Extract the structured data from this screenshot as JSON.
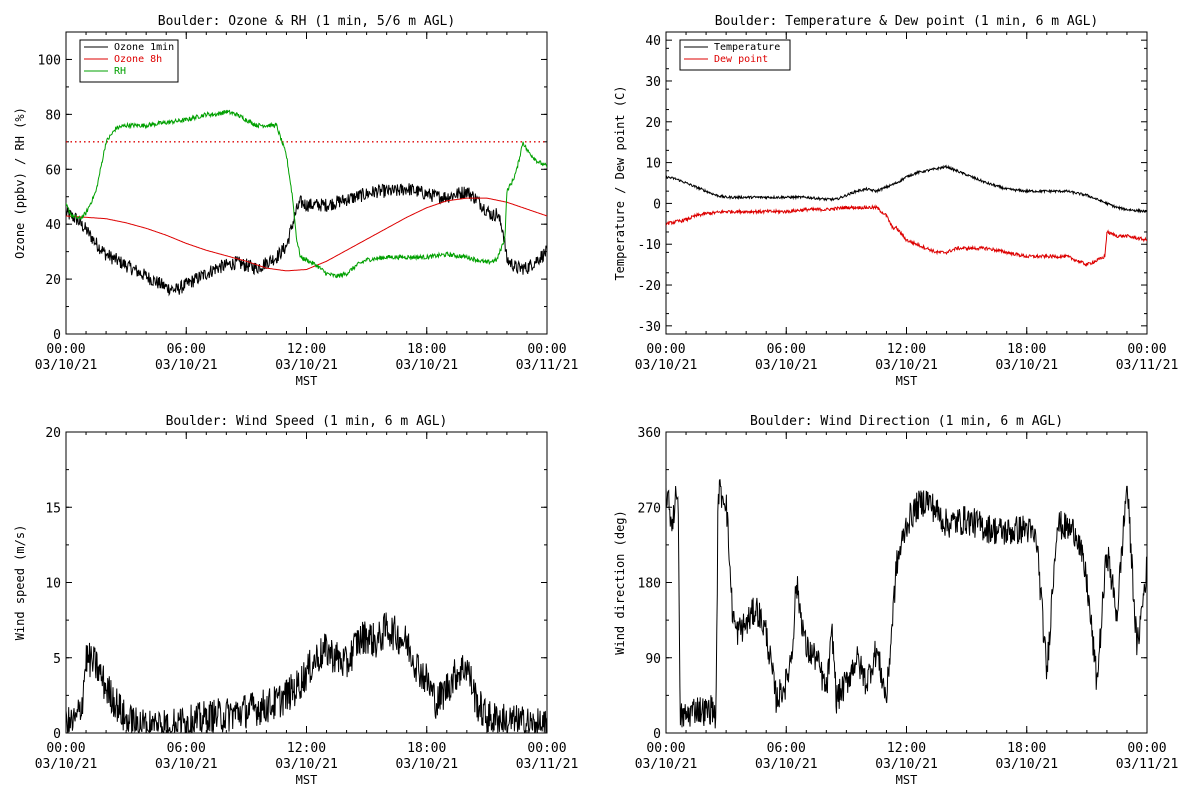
{
  "chart_data": [
    {
      "type": "line",
      "title": "Boulder: Ozone & RH (1 min, 5/6 m AGL)",
      "xlabel": "MST",
      "ylabel": "Ozone (ppbv) / RH (%)",
      "xlim": [
        0,
        24
      ],
      "ylim": [
        0,
        110
      ],
      "yticks": [
        0,
        20,
        40,
        60,
        80,
        100
      ],
      "xticks": [
        {
          "x": 0,
          "time": "00:00",
          "date": "03/10/21"
        },
        {
          "x": 6,
          "time": "06:00",
          "date": "03/10/21"
        },
        {
          "x": 12,
          "time": "12:00",
          "date": "03/10/21"
        },
        {
          "x": 18,
          "time": "18:00",
          "date": "03/10/21"
        },
        {
          "x": 24,
          "time": "00:00",
          "date": "03/11/21"
        }
      ],
      "legend": "top-left",
      "reference_line": {
        "y": 70,
        "color": "#dd0000",
        "style": "dotted"
      },
      "series": [
        {
          "name": "Ozone 1min",
          "color": "#000000",
          "noise": 2.5,
          "x": [
            0,
            0.5,
            1,
            1.5,
            2,
            2.5,
            3,
            3.5,
            4,
            4.5,
            5,
            5.5,
            6,
            6.5,
            7,
            7.5,
            8,
            8.5,
            9,
            9.5,
            10,
            10.5,
            11,
            11.3,
            11.5,
            11.7,
            12,
            12.5,
            13,
            13.5,
            14,
            14.5,
            15,
            15.5,
            16,
            16.5,
            17,
            17.5,
            18,
            18.5,
            19,
            19.5,
            20,
            20.5,
            21,
            21.3,
            21.5,
            21.8,
            22,
            22.5,
            23,
            23.5,
            24
          ],
          "y": [
            44,
            42,
            38,
            33,
            29,
            27,
            25,
            23,
            21,
            19,
            17,
            16,
            18,
            20,
            22,
            24,
            25,
            26,
            25,
            24,
            26,
            28,
            32,
            40,
            45,
            48,
            47,
            47,
            47,
            48,
            49,
            50,
            51,
            52,
            52,
            52,
            53,
            52,
            51,
            50,
            50,
            51,
            52,
            49,
            45,
            43,
            44,
            38,
            27,
            24,
            24,
            27,
            30
          ]
        },
        {
          "name": "Ozone 8h",
          "color": "#dd0000",
          "noise": 0,
          "x": [
            0,
            1,
            2,
            3,
            4,
            5,
            6,
            7,
            8,
            9,
            10,
            11,
            12,
            13,
            14,
            15,
            16,
            17,
            18,
            19,
            20,
            21,
            22,
            23,
            24
          ],
          "y": [
            43,
            42.5,
            42,
            40.5,
            38.5,
            36,
            33,
            30.5,
            28.5,
            26.5,
            24,
            23,
            23.5,
            26.5,
            30.5,
            34.5,
            38.5,
            42.5,
            46,
            48.5,
            49.5,
            49.5,
            48,
            45.5,
            43
          ]
        },
        {
          "name": "RH",
          "color": "#00a000",
          "noise": 0.8,
          "x": [
            0,
            0.3,
            0.7,
            1,
            1.5,
            2,
            2.5,
            3,
            4,
            5,
            6,
            6.5,
            7,
            7.5,
            8,
            8.5,
            9,
            9.5,
            10,
            10.5,
            11,
            11.3,
            11.5,
            11.7,
            12,
            12.5,
            13,
            13.5,
            14,
            14.5,
            15,
            16,
            17,
            18,
            19,
            20,
            21,
            21.5,
            21.9,
            22,
            22.3,
            22.5,
            22.8,
            23,
            23.5,
            24
          ],
          "y": [
            47,
            43,
            42,
            44,
            52,
            70,
            75,
            76,
            76,
            77,
            78,
            79,
            80,
            80,
            81,
            80,
            78,
            76,
            76,
            76,
            65,
            50,
            35,
            28,
            27,
            25,
            22,
            21,
            22,
            25,
            27,
            28,
            28,
            28,
            29,
            28,
            26,
            27,
            35,
            52,
            56,
            60,
            70,
            67,
            63,
            61
          ]
        }
      ]
    },
    {
      "type": "line",
      "title": "Boulder: Temperature & Dew point (1 min, 6 m AGL)",
      "xlabel": "MST",
      "ylabel": "Temperature / Dew point (C)",
      "xlim": [
        0,
        24
      ],
      "ylim": [
        -32,
        42
      ],
      "yticks": [
        -30,
        -20,
        -10,
        0,
        10,
        20,
        30,
        40
      ],
      "xticks": [
        {
          "x": 0,
          "time": "00:00",
          "date": "03/10/21"
        },
        {
          "x": 6,
          "time": "06:00",
          "date": "03/10/21"
        },
        {
          "x": 12,
          "time": "12:00",
          "date": "03/10/21"
        },
        {
          "x": 18,
          "time": "18:00",
          "date": "03/10/21"
        },
        {
          "x": 24,
          "time": "00:00",
          "date": "03/11/21"
        }
      ],
      "legend": "top-left",
      "series": [
        {
          "name": "Temperature",
          "color": "#000000",
          "noise": 0.3,
          "x": [
            0,
            0.5,
            1,
            1.5,
            2,
            2.5,
            3,
            4,
            5,
            6,
            7,
            8,
            8.5,
            9,
            9.5,
            10,
            10.5,
            11,
            11.5,
            12,
            12.5,
            13,
            13.5,
            14,
            14.5,
            15,
            15.5,
            16,
            17,
            18,
            19,
            20,
            21,
            21.5,
            22,
            22.5,
            23,
            24
          ],
          "y": [
            6.5,
            6,
            5,
            4,
            3,
            2,
            1.5,
            1.5,
            1.5,
            1.5,
            1.5,
            1,
            1,
            2,
            3,
            3.5,
            3,
            4,
            5,
            6.5,
            7.5,
            8,
            8.5,
            9,
            8,
            7,
            6,
            5,
            3.5,
            3,
            3,
            3,
            2,
            1,
            0,
            -1,
            -1.5,
            -2
          ]
        },
        {
          "name": "Dew point",
          "color": "#dd0000",
          "noise": 0.4,
          "x": [
            0,
            0.5,
            1,
            1.5,
            2,
            3,
            4,
            5,
            6,
            7,
            8,
            9,
            9.5,
            10,
            10.5,
            11,
            11.3,
            11.5,
            12,
            12.5,
            13,
            13.5,
            14,
            14.5,
            15,
            16,
            17,
            18,
            19,
            20,
            20.5,
            21,
            21.5,
            21.9,
            22,
            22.5,
            23,
            23.5,
            24
          ],
          "y": [
            -5,
            -4.5,
            -4,
            -3,
            -2.5,
            -2,
            -2,
            -2,
            -2,
            -1.5,
            -1.5,
            -1,
            -1,
            -1,
            -1,
            -3,
            -6,
            -6,
            -9,
            -10,
            -11,
            -12,
            -12,
            -11,
            -11,
            -11,
            -12,
            -13,
            -13,
            -13,
            -14,
            -15,
            -14,
            -13,
            -7,
            -8,
            -8,
            -8.5,
            -9
          ]
        }
      ]
    },
    {
      "type": "line",
      "title": "Boulder: Wind Speed (1 min, 6 m AGL)",
      "xlabel": "MST",
      "ylabel": "Wind speed (m/s)",
      "xlim": [
        0,
        24
      ],
      "ylim": [
        0,
        20
      ],
      "yticks": [
        0,
        5,
        10,
        15,
        20
      ],
      "xticks": [
        {
          "x": 0,
          "time": "00:00",
          "date": "03/10/21"
        },
        {
          "x": 6,
          "time": "06:00",
          "date": "03/10/21"
        },
        {
          "x": 12,
          "time": "12:00",
          "date": "03/10/21"
        },
        {
          "x": 18,
          "time": "18:00",
          "date": "03/10/21"
        },
        {
          "x": 24,
          "time": "00:00",
          "date": "03/11/21"
        }
      ],
      "series": [
        {
          "name": "",
          "color": "#000000",
          "noise": 1.2,
          "x": [
            0,
            0.5,
            0.8,
            1,
            1.5,
            2,
            2.5,
            3,
            4,
            5,
            6,
            7,
            8,
            9,
            10,
            10.5,
            11,
            11.5,
            12,
            12.5,
            13,
            13.5,
            14,
            14.5,
            15,
            15.5,
            16,
            16.5,
            17,
            17.5,
            18,
            18.5,
            19,
            19.5,
            20,
            20.5,
            21,
            22,
            23,
            24
          ],
          "y": [
            0.5,
            0.8,
            2,
            5,
            4.5,
            3,
            2,
            0.8,
            0.5,
            0.7,
            0.6,
            1,
            1.2,
            1.5,
            1.8,
            2,
            2.5,
            3,
            4,
            5,
            5.5,
            5,
            4.5,
            6,
            6.5,
            6,
            7,
            6.5,
            6,
            4.5,
            3.5,
            2,
            3,
            4,
            4.5,
            2,
            1,
            0.8,
            0.6,
            0.3
          ]
        }
      ]
    },
    {
      "type": "line",
      "title": "Boulder: Wind Direction (1 min, 6 m AGL)",
      "xlabel": "MST",
      "ylabel": "Wind direction (deg)",
      "xlim": [
        0,
        24
      ],
      "ylim": [
        0,
        360
      ],
      "yticks": [
        0,
        90,
        180,
        270,
        360
      ],
      "xticks": [
        {
          "x": 0,
          "time": "00:00",
          "date": "03/10/21"
        },
        {
          "x": 6,
          "time": "06:00",
          "date": "03/10/21"
        },
        {
          "x": 12,
          "time": "12:00",
          "date": "03/10/21"
        },
        {
          "x": 18,
          "time": "18:00",
          "date": "03/10/21"
        },
        {
          "x": 24,
          "time": "00:00",
          "date": "03/11/21"
        }
      ],
      "series": [
        {
          "name": "",
          "color": "#000000",
          "noise": 18,
          "x": [
            0,
            0.3,
            0.6,
            0.7,
            1,
            1.5,
            2,
            2.3,
            2.5,
            2.6,
            3,
            3.3,
            3.5,
            4,
            4.5,
            5,
            5.5,
            6,
            6.3,
            6.5,
            7,
            7.5,
            8,
            8.3,
            8.5,
            9,
            9.5,
            10,
            10.5,
            11,
            11.5,
            12,
            12.5,
            13,
            14,
            15,
            16,
            17,
            18,
            18.5,
            19,
            19.5,
            20,
            20.5,
            21,
            21.5,
            22,
            22.5,
            23,
            23.5,
            24
          ],
          "y": [
            290,
            250,
            300,
            20,
            20,
            30,
            25,
            30,
            20,
            290,
            280,
            150,
            120,
            130,
            150,
            120,
            40,
            60,
            100,
            180,
            100,
            90,
            50,
            120,
            40,
            60,
            90,
            60,
            100,
            40,
            200,
            250,
            270,
            280,
            250,
            255,
            245,
            240,
            245,
            230,
            70,
            250,
            245,
            240,
            180,
            60,
            220,
            140,
            300,
            100,
            200
          ]
        }
      ]
    }
  ]
}
